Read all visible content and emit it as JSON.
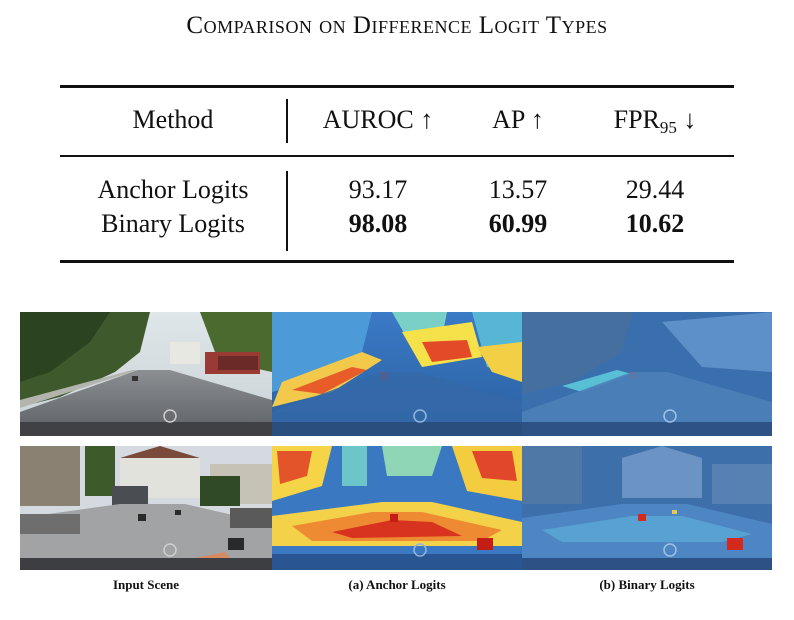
{
  "title": "Comparison on Difference Logit Types",
  "table": {
    "headers": {
      "method": "Method",
      "auroc": "AUROC ↑",
      "ap": "AP ↑",
      "fpr_main": "FPR",
      "fpr_sub": "95",
      "fpr_arrow": " ↓"
    },
    "rows": [
      {
        "method": "Anchor Logits",
        "auroc": "93.17",
        "ap": "13.57",
        "fpr": "29.44",
        "bold": false
      },
      {
        "method": "Binary Logits",
        "auroc": "98.08",
        "ap": "60.99",
        "fpr": "10.62",
        "bold": true
      }
    ]
  },
  "captions": {
    "input": "Input Scene",
    "anchor": "(a) Anchor Logits",
    "binary": "(b) Binary Logits"
  },
  "colors": {
    "rule": "#111111",
    "heat_low": "#2f6fb5",
    "heat_mid": "#f2d43a",
    "heat_high": "#d7301f"
  }
}
